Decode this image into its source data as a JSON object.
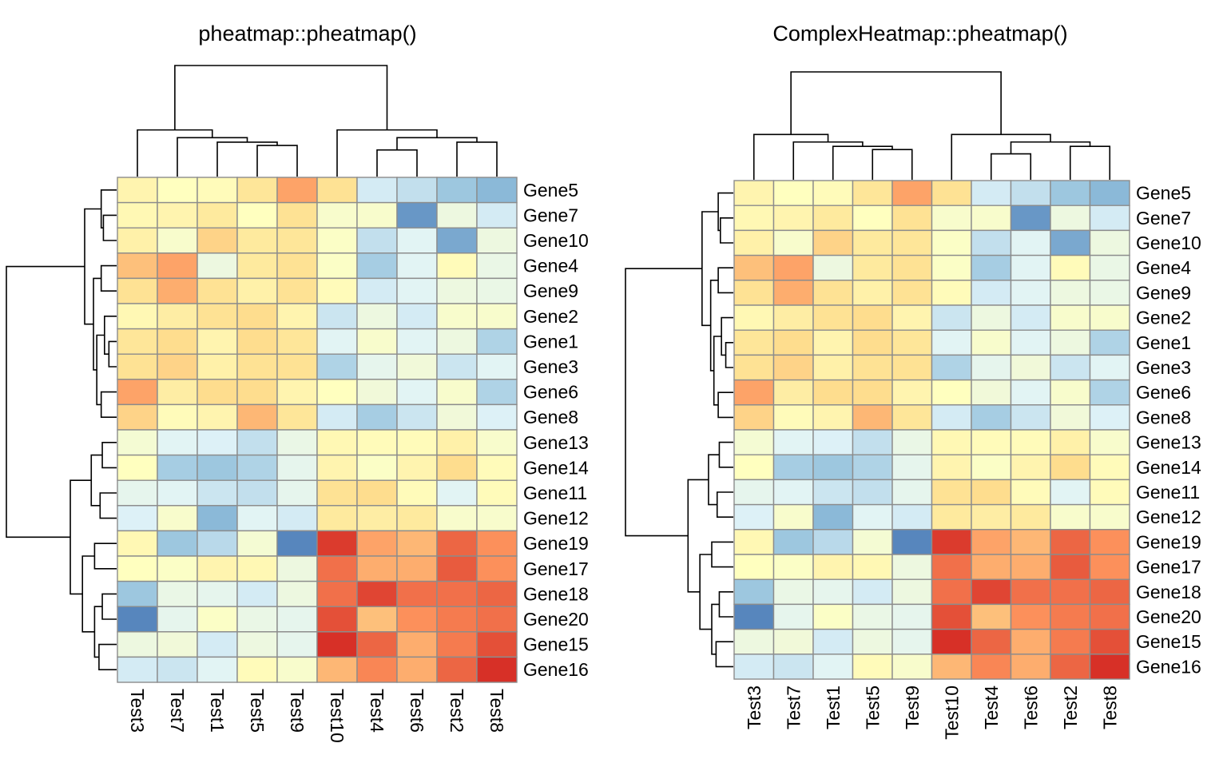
{
  "chart_data": [
    {
      "type": "heatmap",
      "title": "pheatmap::pheatmap()",
      "rows": [
        "Gene5",
        "Gene7",
        "Gene10",
        "Gene4",
        "Gene9",
        "Gene2",
        "Gene1",
        "Gene3",
        "Gene6",
        "Gene8",
        "Gene13",
        "Gene14",
        "Gene11",
        "Gene12",
        "Gene19",
        "Gene17",
        "Gene18",
        "Gene20",
        "Gene15",
        "Gene16"
      ],
      "columns": [
        "Test3",
        "Test7",
        "Test1",
        "Test5",
        "Test9",
        "Test10",
        "Test4",
        "Test6",
        "Test2",
        "Test8"
      ],
      "color_scale": [
        "#4575b4",
        "#91bfdb",
        "#e0f3f8",
        "#ffffbf",
        "#fee090",
        "#fc8d59",
        "#d73027"
      ],
      "values": [
        [
          0.3,
          0.0,
          0.1,
          0.7,
          1.5,
          0.8,
          -1.0,
          -1.2,
          -1.6,
          -1.8
        ],
        [
          0.2,
          0.3,
          0.6,
          0.0,
          0.8,
          -0.2,
          -0.2,
          -2.2,
          -0.5,
          -1.0
        ],
        [
          0.4,
          -0.2,
          1.0,
          0.6,
          0.7,
          -0.1,
          -1.2,
          -0.8,
          -2.0,
          -0.5
        ],
        [
          1.2,
          1.5,
          -0.5,
          0.6,
          0.8,
          -0.1,
          -1.5,
          -0.8,
          0.1,
          -0.6
        ],
        [
          0.8,
          1.4,
          0.8,
          0.4,
          0.8,
          0.1,
          -1.0,
          -0.8,
          -0.5,
          -0.6
        ],
        [
          0.2,
          0.5,
          0.8,
          0.9,
          0.3,
          -1.1,
          -0.5,
          -1.0,
          -0.2,
          -0.2
        ],
        [
          0.7,
          0.9,
          0.3,
          0.9,
          0.7,
          -0.8,
          -0.2,
          -0.8,
          -0.5,
          -1.4
        ],
        [
          0.8,
          1.0,
          0.4,
          0.8,
          0.8,
          -1.4,
          -0.7,
          -0.4,
          -1.1,
          -0.8
        ],
        [
          1.5,
          0.5,
          0.9,
          0.9,
          0.3,
          0.0,
          -0.4,
          -0.8,
          -0.2,
          -1.4
        ],
        [
          1.0,
          0.1,
          0.3,
          1.3,
          0.7,
          -1.0,
          -1.5,
          -1.1,
          -0.4,
          -0.9
        ],
        [
          -0.3,
          -0.8,
          -0.9,
          -1.2,
          -0.6,
          0.2,
          0.1,
          0.1,
          0.4,
          -0.2
        ],
        [
          0.0,
          -1.5,
          -1.6,
          -1.4,
          -0.7,
          0.3,
          -0.1,
          0.3,
          0.9,
          0.1
        ],
        [
          -0.7,
          -0.8,
          -1.1,
          -1.2,
          -0.7,
          0.8,
          0.9,
          0.1,
          -0.8,
          0.1
        ],
        [
          -0.9,
          -0.2,
          -1.8,
          -0.8,
          -1.0,
          0.6,
          0.5,
          0.6,
          -0.2,
          -0.2
        ],
        [
          0.2,
          -1.6,
          -1.3,
          -0.3,
          -2.4,
          2.5,
          1.5,
          1.3,
          2.1,
          1.7
        ],
        [
          0.0,
          -0.1,
          0.3,
          0.2,
          -0.5,
          2.0,
          1.4,
          1.4,
          2.2,
          1.7
        ],
        [
          -1.6,
          -0.6,
          -0.7,
          -1.0,
          -0.5,
          2.0,
          2.4,
          2.0,
          2.0,
          2.1
        ],
        [
          -2.4,
          -0.7,
          -0.1,
          -0.6,
          -0.7,
          2.3,
          1.2,
          1.7,
          1.9,
          2.0
        ],
        [
          -0.5,
          -0.4,
          -1.0,
          -0.5,
          -0.7,
          2.6,
          2.1,
          1.4,
          1.9,
          2.3
        ],
        [
          -1.0,
          -1.1,
          -0.8,
          0.1,
          -0.2,
          1.3,
          1.8,
          1.4,
          2.1,
          2.7
        ]
      ]
    },
    {
      "type": "heatmap",
      "title": "ComplexHeatmap::pheatmap()",
      "rows": [
        "Gene5",
        "Gene7",
        "Gene10",
        "Gene4",
        "Gene9",
        "Gene2",
        "Gene1",
        "Gene3",
        "Gene6",
        "Gene8",
        "Gene13",
        "Gene14",
        "Gene11",
        "Gene12",
        "Gene19",
        "Gene17",
        "Gene18",
        "Gene20",
        "Gene15",
        "Gene16"
      ],
      "columns": [
        "Test3",
        "Test7",
        "Test1",
        "Test5",
        "Test9",
        "Test10",
        "Test4",
        "Test6",
        "Test2",
        "Test8"
      ],
      "color_scale": [
        "#4575b4",
        "#91bfdb",
        "#e0f3f8",
        "#ffffbf",
        "#fee090",
        "#fc8d59",
        "#d73027"
      ],
      "values": [
        [
          0.3,
          0.0,
          0.1,
          0.7,
          1.5,
          0.8,
          -1.0,
          -1.2,
          -1.6,
          -1.8
        ],
        [
          0.2,
          0.3,
          0.6,
          0.0,
          0.8,
          -0.2,
          -0.2,
          -2.2,
          -0.5,
          -1.0
        ],
        [
          0.4,
          -0.2,
          1.0,
          0.6,
          0.7,
          -0.1,
          -1.2,
          -0.8,
          -2.0,
          -0.5
        ],
        [
          1.2,
          1.5,
          -0.5,
          0.6,
          0.8,
          -0.1,
          -1.5,
          -0.8,
          0.1,
          -0.6
        ],
        [
          0.8,
          1.4,
          0.8,
          0.4,
          0.8,
          0.1,
          -1.0,
          -0.8,
          -0.5,
          -0.6
        ],
        [
          0.2,
          0.5,
          0.8,
          0.9,
          0.3,
          -1.1,
          -0.5,
          -1.0,
          -0.2,
          -0.2
        ],
        [
          0.7,
          0.9,
          0.3,
          0.9,
          0.7,
          -0.8,
          -0.2,
          -0.8,
          -0.5,
          -1.4
        ],
        [
          0.8,
          1.0,
          0.4,
          0.8,
          0.8,
          -1.4,
          -0.7,
          -0.4,
          -1.1,
          -0.8
        ],
        [
          1.5,
          0.5,
          0.9,
          0.9,
          0.3,
          0.0,
          -0.4,
          -0.8,
          -0.2,
          -1.4
        ],
        [
          1.0,
          0.1,
          0.3,
          1.3,
          0.7,
          -1.0,
          -1.5,
          -1.1,
          -0.4,
          -0.9
        ],
        [
          -0.3,
          -0.8,
          -0.9,
          -1.2,
          -0.6,
          0.2,
          0.1,
          0.1,
          0.4,
          -0.2
        ],
        [
          0.0,
          -1.5,
          -1.6,
          -1.4,
          -0.7,
          0.3,
          -0.1,
          0.3,
          0.9,
          0.1
        ],
        [
          -0.7,
          -0.8,
          -1.1,
          -1.2,
          -0.7,
          0.8,
          0.9,
          0.1,
          -0.8,
          0.1
        ],
        [
          -0.9,
          -0.2,
          -1.8,
          -0.8,
          -1.0,
          0.6,
          0.5,
          0.6,
          -0.2,
          -0.2
        ],
        [
          0.2,
          -1.6,
          -1.3,
          -0.3,
          -2.4,
          2.5,
          1.5,
          1.3,
          2.1,
          1.7
        ],
        [
          0.0,
          -0.1,
          0.3,
          0.2,
          -0.5,
          2.0,
          1.4,
          1.4,
          2.2,
          1.7
        ],
        [
          -1.6,
          -0.6,
          -0.7,
          -1.0,
          -0.5,
          2.0,
          2.4,
          2.0,
          2.0,
          2.1
        ],
        [
          -2.4,
          -0.7,
          -0.1,
          -0.6,
          -0.7,
          2.3,
          1.2,
          1.7,
          1.9,
          2.0
        ],
        [
          -0.5,
          -0.4,
          -1.0,
          -0.5,
          -0.7,
          2.6,
          2.1,
          1.4,
          1.9,
          2.3
        ],
        [
          -1.0,
          -1.1,
          -0.8,
          0.1,
          -0.2,
          1.3,
          1.8,
          1.4,
          2.1,
          2.7
        ]
      ]
    }
  ]
}
